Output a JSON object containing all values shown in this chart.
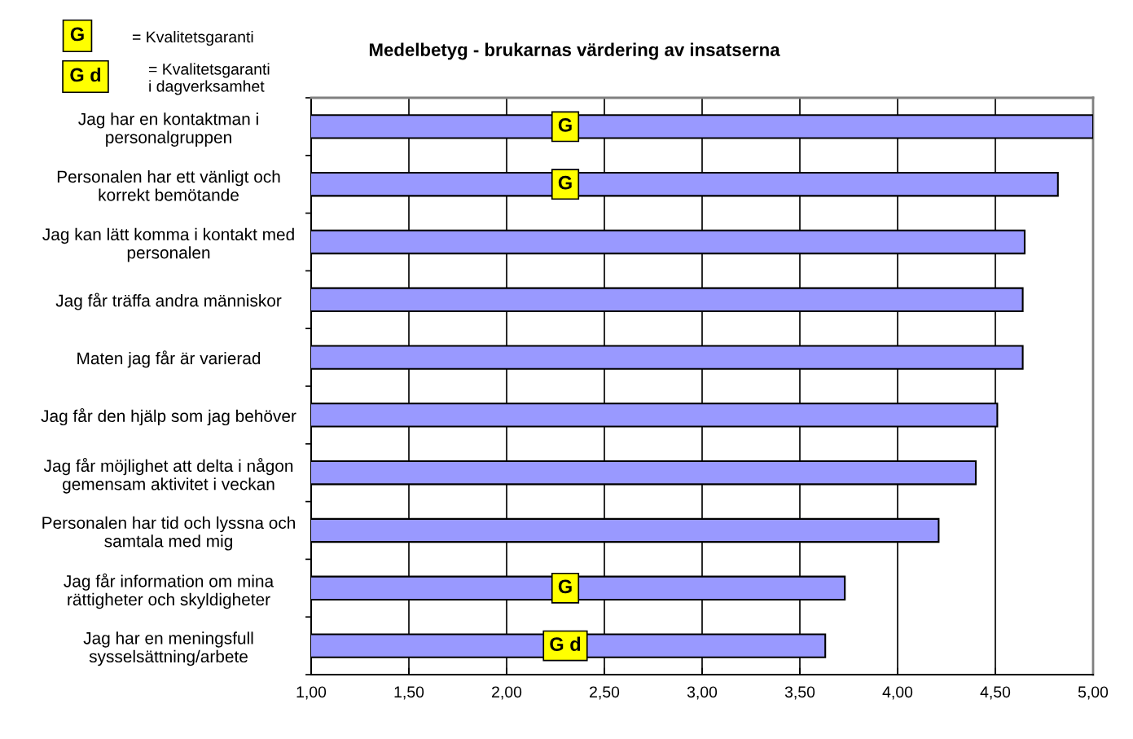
{
  "chart_data": {
    "type": "bar",
    "orientation": "horizontal",
    "title": "Medelbetyg - brukarnas värdering av insatserna",
    "categories": [
      "Jag har en kontaktman i\npersonalgruppen",
      "Personalen har ett vänligt och\nkorrekt bemötande",
      "Jag kan lätt komma i kontakt med\npersonalen",
      "Jag får träffa andra människor",
      "Maten jag får är varierad",
      "Jag får den hjälp som jag behöver",
      "Jag får möjlighet att delta i någon\ngemensam aktivitet i veckan",
      "Personalen har tid och lyssna och\nsamtala med mig",
      "Jag får information om mina\nrättigheter och skyldigheter",
      "Jag har en meningsfull\nsysselsättning/arbete"
    ],
    "values": [
      5.0,
      4.82,
      4.65,
      4.64,
      4.64,
      4.51,
      4.4,
      4.21,
      3.73,
      3.63
    ],
    "color": "#9999ff",
    "xlim": [
      1,
      5
    ],
    "xticks": [
      {
        "value": 1,
        "label": "1,00"
      },
      {
        "value": 1.5,
        "label": "1,50"
      },
      {
        "value": 2,
        "label": "2,00"
      },
      {
        "value": 2.5,
        "label": "2,50"
      },
      {
        "value": 3,
        "label": "3,00"
      },
      {
        "value": 3.5,
        "label": "3,50"
      },
      {
        "value": 4,
        "label": "4,00"
      },
      {
        "value": 4.5,
        "label": "4,50"
      },
      {
        "value": 5,
        "label": "5,00"
      }
    ],
    "grid": "x",
    "annotations": [
      "G",
      "= Kvalitetsgaranti",
      "G d",
      "= Kvalitetsgaranti\ni dagverksamhet",
      "G",
      "G",
      "G",
      "G d"
    ]
  }
}
